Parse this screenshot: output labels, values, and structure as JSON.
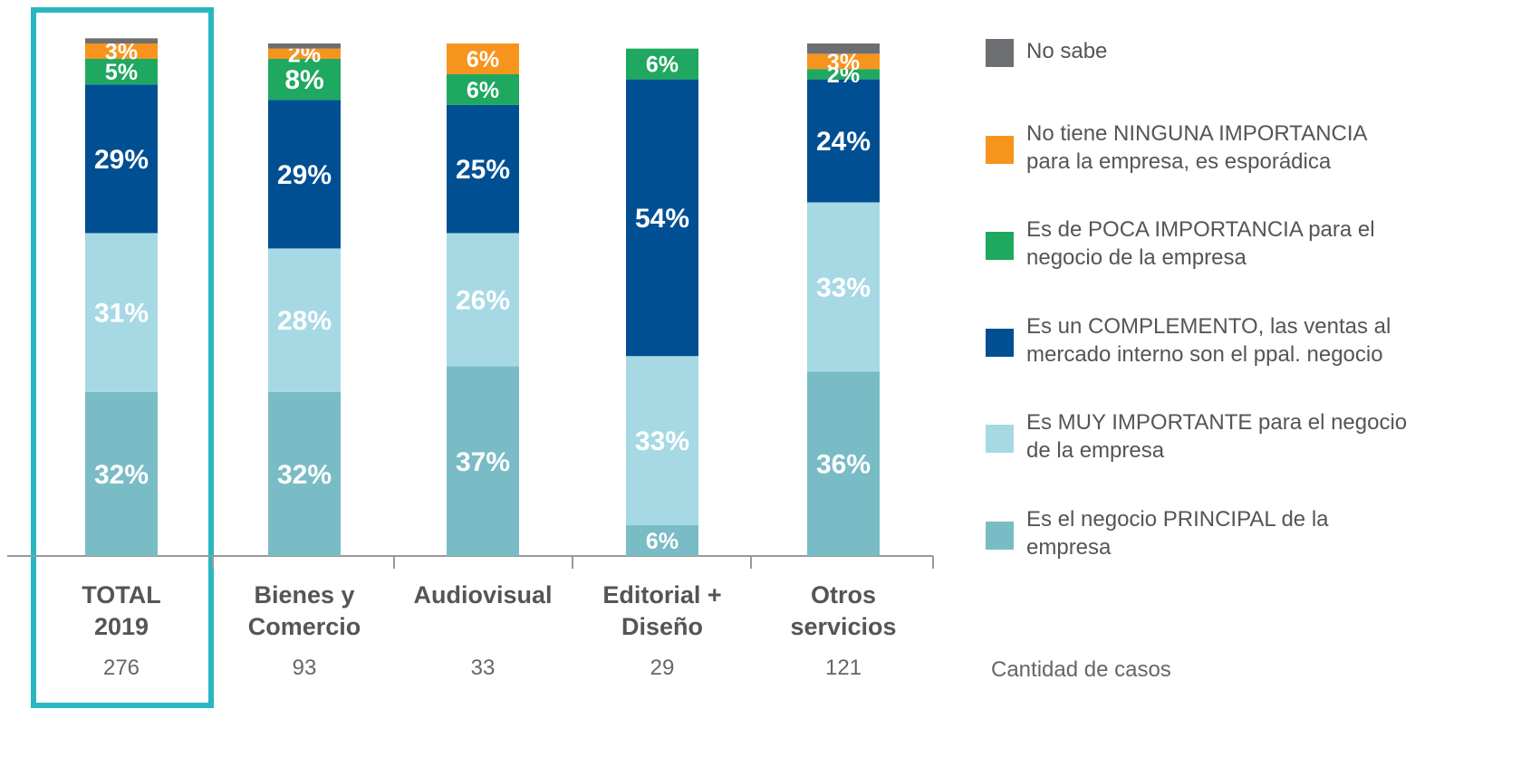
{
  "chart_data": {
    "type": "bar",
    "stacked": true,
    "categories": [
      "TOTAL\n2019",
      "Bienes y\nComercio",
      "Audiovisual",
      "Editorial +\nDiseño",
      "Otros\nservicios"
    ],
    "ylim": [
      0,
      100
    ],
    "series": [
      {
        "name": "Es el negocio PRINCIPAL de la\nempresa",
        "color": "#79bcc6",
        "values": [
          32,
          32,
          37,
          6,
          36
        ],
        "value_labels": [
          "32%",
          "32%",
          "37%",
          "6%",
          "36%"
        ]
      },
      {
        "name": "Es MUY IMPORTANTE para el negocio\nde la empresa",
        "color": "#a7d9e5",
        "values": [
          31,
          28,
          26,
          33,
          33
        ],
        "value_labels": [
          "31%",
          "28%",
          "26%",
          "33%",
          "33%"
        ]
      },
      {
        "name": "Es un COMPLEMENTO, las ventas al\nmercado interno son el ppal. negocio",
        "color": "#004f93",
        "values": [
          29,
          29,
          25,
          54,
          24
        ],
        "value_labels": [
          "29%",
          "29%",
          "25%",
          "54%",
          "24%"
        ]
      },
      {
        "name": "Es de POCA IMPORTANCIA para el\nnegocio de la empresa",
        "color": "#1fa85f",
        "values": [
          5,
          8,
          6,
          6,
          2
        ],
        "value_labels": [
          "5%",
          "8%",
          "6%",
          "6%",
          "2%"
        ]
      },
      {
        "name": "No tiene NINGUNA IMPORTANCIA\npara la empresa, es esporádica",
        "color": "#f7941d",
        "values": [
          3,
          2,
          6,
          0,
          3
        ],
        "value_labels": [
          "3%",
          "2%",
          "6%",
          null,
          "3%"
        ]
      },
      {
        "name": "No sabe",
        "color": "#6d6e71",
        "values": [
          1,
          1,
          0,
          0,
          2
        ],
        "value_labels": [
          null,
          null,
          null,
          null,
          null
        ]
      }
    ],
    "sample_sizes": {
      "label": "Cantidad de casos",
      "values": [
        276,
        93,
        33,
        29,
        121
      ]
    }
  }
}
